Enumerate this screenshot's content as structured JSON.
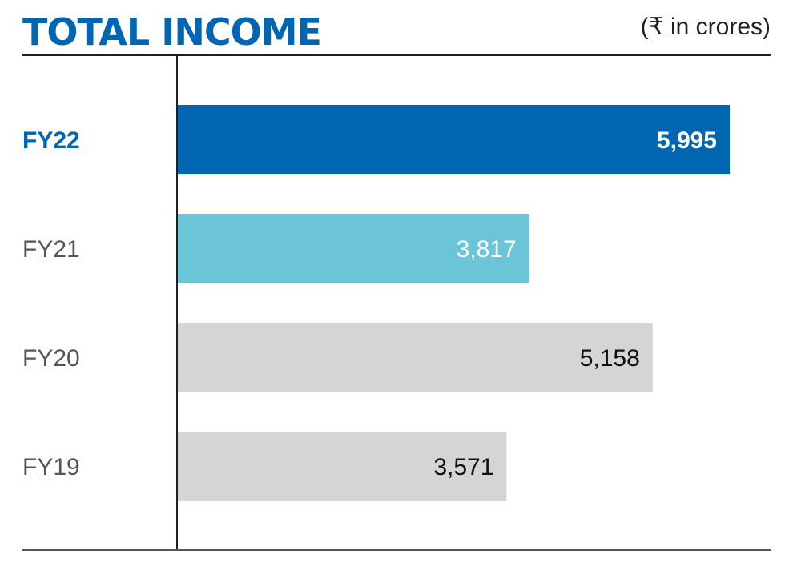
{
  "chart_data": {
    "type": "bar",
    "orientation": "horizontal",
    "title": "TOTAL INCOME",
    "unit_label": "(₹ in crores)",
    "categories": [
      "FY22",
      "FY21",
      "FY20",
      "FY19"
    ],
    "values": [
      5995,
      3817,
      5158,
      3571
    ],
    "data_labels": [
      "5,995",
      "3,817",
      "5,158",
      "3,571"
    ],
    "bar_colors": [
      "#0066b3",
      "#6cc4d9",
      "#d4d5d7",
      "#d4d5d7"
    ],
    "label_colors": [
      "#0066b3",
      "#555555",
      "#555555",
      "#555555"
    ],
    "value_label_colors": [
      "#ffffff",
      "#ffffff",
      "#111111",
      "#111111"
    ],
    "highlight_category": "FY22",
    "xlim": [
      0,
      6000
    ],
    "grid": false
  },
  "colors": {
    "title": "#0066b3",
    "axis": "#231f20"
  }
}
